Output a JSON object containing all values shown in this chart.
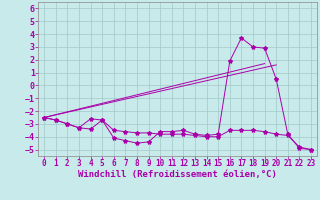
{
  "xlabel": "Windchill (Refroidissement éolien,°C)",
  "background_color": "#c8eaea",
  "line_color": "#aa00aa",
  "grid_color": "#a0c8c8",
  "xlim": [
    -0.5,
    23.5
  ],
  "ylim": [
    -5.5,
    6.5
  ],
  "xticks": [
    0,
    1,
    2,
    3,
    4,
    5,
    6,
    7,
    8,
    9,
    10,
    11,
    12,
    13,
    14,
    15,
    16,
    17,
    18,
    19,
    20,
    21,
    22,
    23
  ],
  "yticks": [
    -5,
    -4,
    -3,
    -2,
    -1,
    0,
    1,
    2,
    3,
    4,
    5,
    6
  ],
  "line1_x": [
    0,
    1,
    2,
    3,
    4,
    5,
    6,
    7,
    8,
    9,
    10,
    11,
    12,
    13,
    14,
    15,
    16,
    17,
    18,
    19,
    20,
    21,
    22,
    23
  ],
  "line1_y": [
    -2.5,
    -2.7,
    -3.0,
    -3.3,
    -2.6,
    -2.7,
    -4.1,
    -4.3,
    -4.5,
    -4.4,
    -3.6,
    -3.6,
    -3.5,
    -3.8,
    -3.9,
    -3.8,
    1.9,
    3.7,
    3.0,
    2.9,
    0.5,
    -3.8,
    -4.9,
    -5.0
  ],
  "line2_x": [
    0,
    1,
    2,
    3,
    4,
    5,
    6,
    7,
    8,
    9,
    10,
    11,
    12,
    13,
    14,
    15,
    16,
    17,
    18,
    19,
    20,
    21,
    22,
    23
  ],
  "line2_y": [
    -2.5,
    -2.7,
    -3.0,
    -3.3,
    -3.4,
    -2.7,
    -3.5,
    -3.6,
    -3.7,
    -3.7,
    -3.8,
    -3.8,
    -3.8,
    -3.9,
    -4.0,
    -4.0,
    -3.5,
    -3.5,
    -3.5,
    -3.6,
    -3.8,
    -3.9,
    -4.8,
    -5.0
  ],
  "line3_x": [
    0,
    19
  ],
  "line3_y": [
    -2.5,
    1.7
  ],
  "line4_x": [
    0,
    20
  ],
  "line4_y": [
    -2.5,
    1.6
  ],
  "tick_fontsize": 5.5,
  "xlabel_fontsize": 6.5
}
